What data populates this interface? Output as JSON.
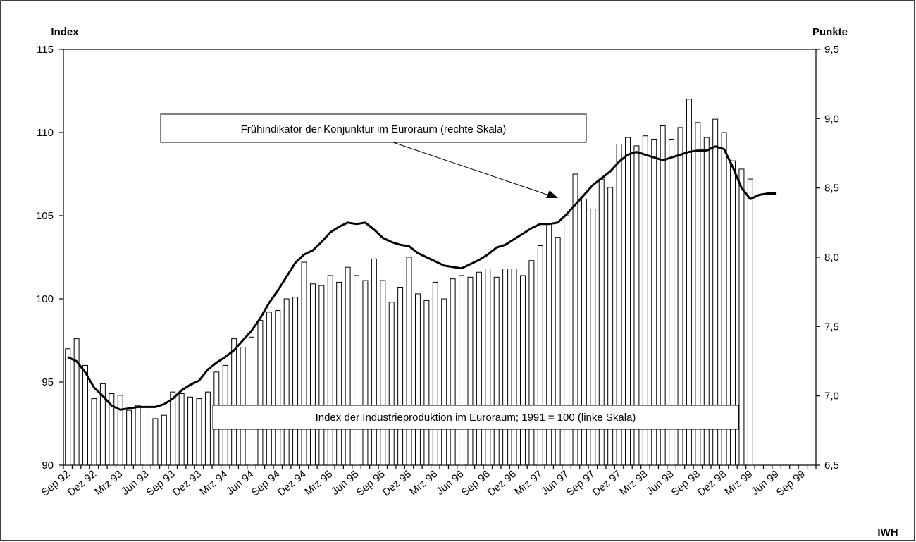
{
  "chart_data": {
    "type": "bar-line",
    "y_label": "Index",
    "y2_label": "Punkte",
    "source": "IWH",
    "categories": [
      "Sep 92",
      null,
      null,
      "Dez 92",
      null,
      null,
      "Mrz 93",
      null,
      null,
      "Jun 93",
      null,
      null,
      "Sep 93",
      null,
      null,
      "Dez 93",
      null,
      null,
      "Mrz 94",
      null,
      null,
      "Jun 94",
      null,
      null,
      "Sep 94",
      null,
      null,
      "Dez 94",
      null,
      null,
      "Mrz 95",
      null,
      null,
      "Jun 95",
      null,
      null,
      "Sep 95",
      null,
      null,
      "Dez 95",
      null,
      null,
      "Mrz 96",
      null,
      null,
      "Jun 96",
      null,
      null,
      "Sep 96",
      null,
      null,
      "Dez 96",
      null,
      null,
      "Mrz 97",
      null,
      null,
      "Jun 97",
      null,
      null,
      "Sep 97",
      null,
      null,
      "Dez 97",
      null,
      null,
      "Mrz 98",
      null,
      null,
      "Jun 98",
      null,
      null,
      "Sep 98",
      null,
      null,
      "Dez 98",
      null,
      null,
      "Mrz 99",
      null,
      null,
      "Jun 99",
      null,
      null,
      "Sep 99",
      null
    ],
    "series": [
      {
        "name": "Index der Industrieproduktion im Euroraum; 1991 = 100 (linke Skala)",
        "color": "#ffffff",
        "axis": "y",
        "values": [
          97.0,
          97.6,
          96.0,
          94.0,
          94.9,
          94.3,
          94.2,
          93.3,
          93.6,
          93.2,
          92.8,
          93.0,
          94.4,
          94.3,
          94.1,
          94.0,
          94.4,
          95.6,
          96.0,
          97.6,
          97.1,
          97.7,
          98.7,
          99.2,
          99.3,
          100.0,
          100.1,
          102.2,
          100.9,
          100.8,
          101.4,
          101.0,
          101.9,
          101.4,
          101.1,
          102.4,
          101.1,
          99.8,
          100.7,
          102.5,
          100.3,
          99.9,
          101.0,
          100.0,
          101.2,
          101.4,
          101.3,
          101.6,
          101.8,
          101.3,
          101.8,
          101.8,
          101.4,
          102.3,
          103.2,
          104.5,
          103.7,
          105.0,
          107.5,
          106.0,
          105.4,
          107.2,
          106.7,
          109.3,
          109.7,
          109.2,
          109.8,
          109.6,
          110.4,
          109.6,
          110.3,
          112.0,
          110.6,
          109.7,
          110.8,
          110.0,
          108.3,
          107.8,
          107.2,
          null,
          null,
          null,
          null,
          null,
          null,
          null
        ]
      },
      {
        "name": "Frühindikator der Konjunktur im Euroraum (rechte Skala)",
        "color": "#000000",
        "axis": "y2",
        "values": [
          7.28,
          7.25,
          7.17,
          7.06,
          7.0,
          6.93,
          6.9,
          6.91,
          6.92,
          6.92,
          6.92,
          6.94,
          6.98,
          7.04,
          7.08,
          7.11,
          7.19,
          7.24,
          7.28,
          7.33,
          7.4,
          7.47,
          7.56,
          7.67,
          7.76,
          7.86,
          7.96,
          8.02,
          8.05,
          8.11,
          8.18,
          8.22,
          8.25,
          8.24,
          8.25,
          8.2,
          8.14,
          8.11,
          8.09,
          8.08,
          8.03,
          8.0,
          7.97,
          7.94,
          7.93,
          7.92,
          7.95,
          7.98,
          8.02,
          8.07,
          8.09,
          8.13,
          8.17,
          8.21,
          8.24,
          8.24,
          8.25,
          8.31,
          8.38,
          8.45,
          8.52,
          8.57,
          8.62,
          8.69,
          8.74,
          8.76,
          8.74,
          8.72,
          8.7,
          8.72,
          8.74,
          8.76,
          8.77,
          8.77,
          8.8,
          8.78,
          8.65,
          8.5,
          8.42,
          8.45,
          8.46,
          8.46,
          null,
          null,
          null,
          null
        ]
      }
    ],
    "ylim": [
      90,
      115
    ],
    "yticks": [
      90,
      95,
      100,
      105,
      110,
      115
    ],
    "y2lim": [
      6.5,
      9.5
    ],
    "y2ticks": [
      {
        "value": 6.5,
        "label": "6,5"
      },
      {
        "value": 7.0,
        "label": "7,0"
      },
      {
        "value": 7.5,
        "label": "7,5"
      },
      {
        "value": 8.0,
        "label": "8,0"
      },
      {
        "value": 8.5,
        "label": "8,5"
      },
      {
        "value": 9.0,
        "label": "9,0"
      },
      {
        "value": 9.5,
        "label": "9,5"
      }
    ],
    "grid": false
  }
}
